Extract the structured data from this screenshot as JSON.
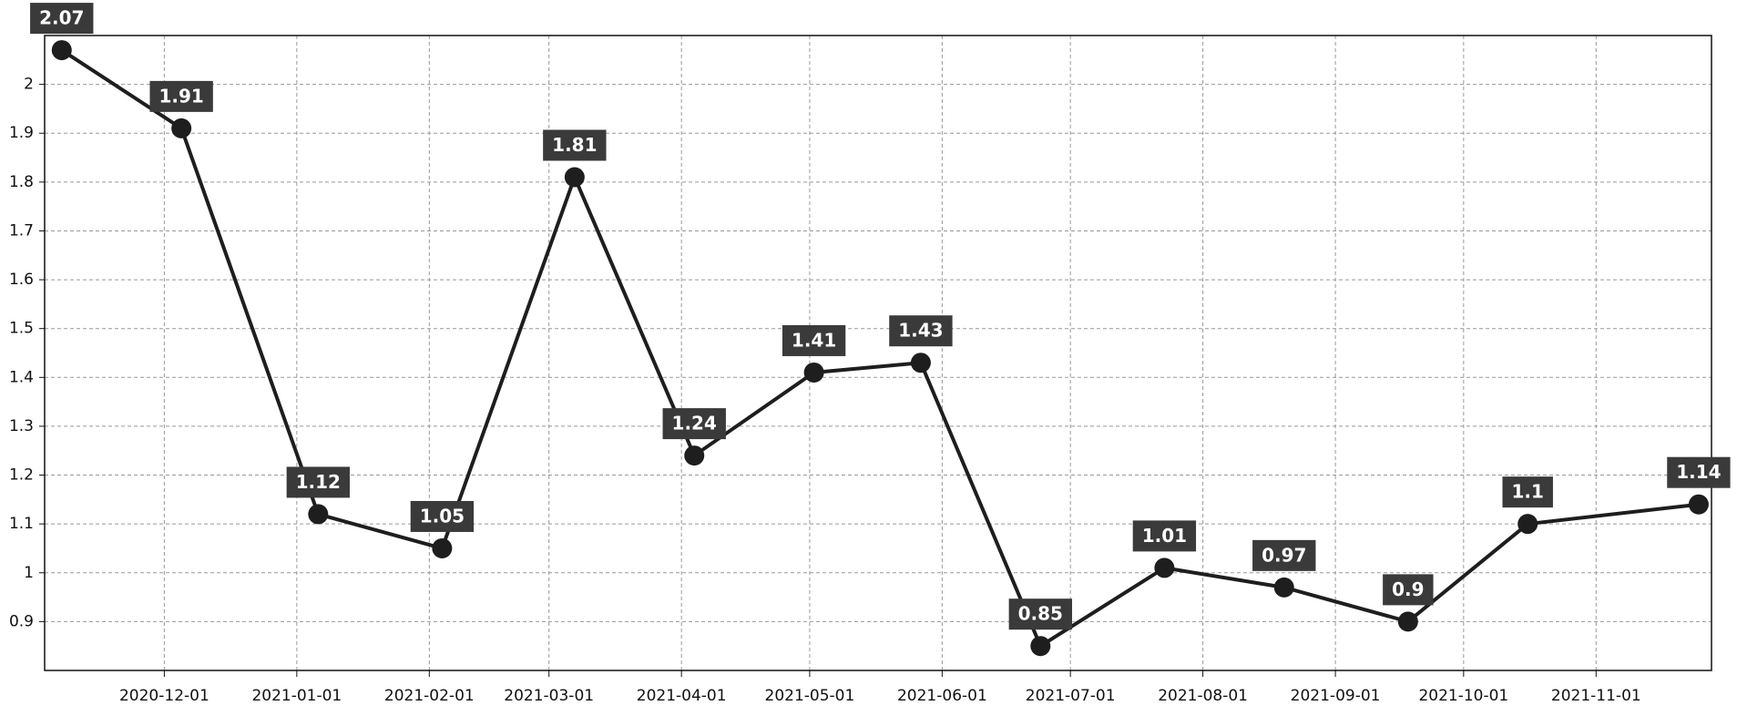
{
  "chart_data": {
    "type": "line",
    "x": [
      "2020-11-07",
      "2020-12-05",
      "2021-01-06",
      "2021-02-04",
      "2021-03-07",
      "2021-04-04",
      "2021-05-02",
      "2021-05-27",
      "2021-06-24",
      "2021-07-23",
      "2021-08-20",
      "2021-09-18",
      "2021-10-16",
      "2021-11-25"
    ],
    "values": [
      2.07,
      1.91,
      1.12,
      1.05,
      1.81,
      1.24,
      1.41,
      1.43,
      0.85,
      1.01,
      0.97,
      0.9,
      1.1,
      1.14
    ],
    "color": "#1e1e1e",
    "xlim": [
      "2020-11-03",
      "2021-11-28"
    ],
    "xticks": [
      "2020-12-01",
      "2021-01-01",
      "2021-02-01",
      "2021-03-01",
      "2021-04-01",
      "2021-05-01",
      "2021-06-01",
      "2021-07-01",
      "2021-08-01",
      "2021-09-01",
      "2021-10-01",
      "2021-11-01"
    ],
    "ylim": [
      0.8,
      2.1
    ],
    "yticks": [
      0.9,
      1,
      1.1,
      1.2,
      1.3,
      1.4,
      1.5,
      1.6,
      1.7,
      1.8,
      1.9,
      2
    ],
    "grid": true
  }
}
